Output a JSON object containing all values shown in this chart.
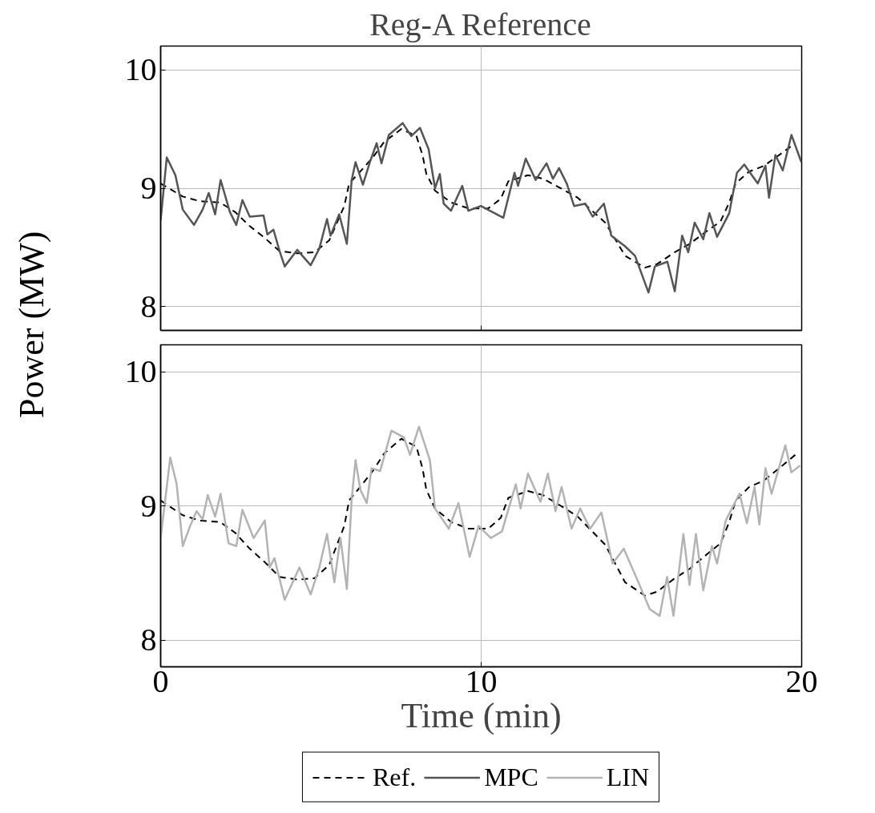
{
  "chart_data": [
    {
      "type": "line",
      "title": "Reg-A Reference",
      "ylabel": "Power (MW)",
      "xlim": [
        0,
        20
      ],
      "xticks": [
        0,
        10,
        20
      ],
      "ylim": [
        7.8,
        10.2
      ],
      "yticks": [
        8,
        9,
        10
      ],
      "grid": true,
      "tick_labels": "y",
      "legend": "bottom",
      "series": [
        {
          "name": "Ref.",
          "color": "#000000",
          "line_style": "dashed",
          "x": [
            0,
            0.69,
            1.23,
            1.85,
            2.32,
            2.78,
            3.25,
            3.71,
            4.26,
            4.8,
            5.26,
            5.73,
            5.88,
            6.19,
            6.62,
            6.97,
            7.51,
            7.98,
            8.17,
            8.29,
            8.56,
            9.06,
            9.6,
            10.22,
            10.61,
            10.85,
            11.46,
            11.93,
            12.55,
            13.01,
            13.87,
            14.49,
            15.11,
            15.49,
            16.04,
            16.5,
            17.05,
            17.47,
            17.74,
            17.94,
            18.36,
            18.83,
            19.45,
            19.8
          ],
          "values": [
            9.04,
            8.93,
            8.89,
            8.88,
            8.8,
            8.68,
            8.58,
            8.47,
            8.45,
            8.46,
            8.56,
            8.85,
            9.04,
            9.13,
            9.26,
            9.39,
            9.5,
            9.44,
            9.28,
            9.12,
            8.98,
            8.88,
            8.83,
            8.83,
            8.91,
            9.06,
            9.11,
            9.08,
            8.99,
            8.92,
            8.71,
            8.43,
            8.33,
            8.36,
            8.46,
            8.53,
            8.64,
            8.72,
            8.88,
            9.04,
            9.14,
            9.19,
            9.31,
            9.38
          ]
        },
        {
          "name": "MPC",
          "color": "#555555",
          "line_style": "solid",
          "x": [
            0,
            0.19,
            0.46,
            0.69,
            1.04,
            1.31,
            1.5,
            1.7,
            1.87,
            2.16,
            2.36,
            2.55,
            2.78,
            3.21,
            3.33,
            3.52,
            3.71,
            3.87,
            4.26,
            4.68,
            4.95,
            5.19,
            5.3,
            5.57,
            5.81,
            5.96,
            6.08,
            6.31,
            6.54,
            6.74,
            6.89,
            7.12,
            7.55,
            7.82,
            8.09,
            8.36,
            8.56,
            8.71,
            8.83,
            9.06,
            9.41,
            9.6,
            9.99,
            10.69,
            11.04,
            11.15,
            11.39,
            11.7,
            12.04,
            12.24,
            12.43,
            12.67,
            12.9,
            13.25,
            13.48,
            13.83,
            14.06,
            14.49,
            14.8,
            15.22,
            15.42,
            15.81,
            16.04,
            16.27,
            16.46,
            16.66,
            16.93,
            17.12,
            17.36,
            17.74,
            17.98,
            18.21,
            18.63,
            18.87,
            18.98,
            19.18,
            19.41,
            19.68,
            19.99
          ],
          "values": [
            8.73,
            9.26,
            9.11,
            8.82,
            8.69,
            8.82,
            8.96,
            8.78,
            9.07,
            8.8,
            8.69,
            8.9,
            8.76,
            8.77,
            8.61,
            8.65,
            8.47,
            8.34,
            8.48,
            8.35,
            8.49,
            8.74,
            8.6,
            8.78,
            8.53,
            9.07,
            9.22,
            9.03,
            9.23,
            9.38,
            9.21,
            9.45,
            9.55,
            9.44,
            9.51,
            9.33,
            9.0,
            9.12,
            8.87,
            8.81,
            9.02,
            8.81,
            8.85,
            8.75,
            9.13,
            9.02,
            9.25,
            9.07,
            9.21,
            9.08,
            9.17,
            9.04,
            8.85,
            8.87,
            8.76,
            8.87,
            8.6,
            8.51,
            8.43,
            8.12,
            8.34,
            8.38,
            8.13,
            8.6,
            8.46,
            8.71,
            8.57,
            8.79,
            8.59,
            8.79,
            9.13,
            9.2,
            9.04,
            9.19,
            8.92,
            9.28,
            9.15,
            9.45,
            9.22
          ]
        }
      ]
    },
    {
      "type": "line",
      "xlabel": "Time (min)",
      "xlim": [
        0,
        20
      ],
      "xticks": [
        0,
        10,
        20
      ],
      "ylim": [
        7.8,
        10.2
      ],
      "yticks": [
        8,
        9,
        10
      ],
      "grid": true,
      "legend": "bottom",
      "series": [
        {
          "color": "#000000",
          "line_style": "dashed",
          "x": [
            0,
            0.69,
            1.23,
            1.85,
            2.32,
            2.78,
            3.25,
            3.71,
            4.26,
            4.8,
            5.26,
            5.73,
            5.88,
            6.19,
            6.62,
            6.97,
            7.51,
            7.98,
            8.17,
            8.29,
            8.56,
            9.06,
            9.6,
            10.22,
            10.61,
            10.85,
            11.46,
            11.93,
            12.55,
            13.01,
            13.87,
            14.49,
            15.11,
            15.49,
            16.04,
            16.5,
            17.05,
            17.47,
            17.74,
            17.94,
            18.36,
            18.83,
            19.45,
            19.8
          ],
          "values": [
            9.04,
            8.93,
            8.89,
            8.88,
            8.8,
            8.68,
            8.58,
            8.47,
            8.45,
            8.46,
            8.56,
            8.85,
            9.04,
            9.13,
            9.26,
            9.39,
            9.5,
            9.44,
            9.28,
            9.12,
            8.98,
            8.88,
            8.83,
            8.83,
            8.91,
            9.06,
            9.11,
            9.08,
            8.99,
            8.92,
            8.71,
            8.43,
            8.33,
            8.36,
            8.46,
            8.53,
            8.64,
            8.72,
            8.88,
            9.04,
            9.14,
            9.19,
            9.31,
            9.38
          ]
        },
        {
          "name": "LIN",
          "color": "#b3b3b3",
          "line_style": "solid",
          "x": [
            0,
            0.3,
            0.5,
            0.69,
            0.92,
            1.12,
            1.31,
            1.47,
            1.7,
            1.87,
            2.12,
            2.36,
            2.55,
            2.9,
            3.25,
            3.4,
            3.55,
            3.87,
            4.33,
            4.68,
            4.95,
            5.19,
            5.42,
            5.61,
            5.81,
            5.96,
            6.08,
            6.23,
            6.43,
            6.58,
            6.85,
            7.2,
            7.59,
            7.78,
            8.06,
            8.4,
            8.56,
            8.99,
            9.29,
            9.64,
            9.92,
            10.3,
            10.65,
            11.08,
            11.23,
            11.46,
            11.85,
            12.08,
            12.32,
            12.51,
            12.82,
            13.09,
            13.4,
            13.75,
            14.1,
            14.45,
            14.87,
            15.26,
            15.57,
            15.8,
            16.0,
            16.31,
            16.5,
            16.7,
            16.93,
            17.2,
            17.36,
            17.63,
            18.06,
            18.29,
            18.53,
            18.68,
            18.87,
            19.06,
            19.49,
            19.68,
            19.95
          ],
          "values": [
            8.76,
            9.36,
            9.16,
            8.7,
            8.85,
            8.96,
            8.9,
            9.08,
            8.92,
            9.09,
            8.72,
            8.7,
            8.97,
            8.76,
            8.89,
            8.54,
            8.61,
            8.3,
            8.54,
            8.34,
            8.54,
            8.79,
            8.43,
            8.76,
            8.38,
            9.05,
            9.34,
            9.12,
            9.02,
            9.28,
            9.26,
            9.56,
            9.51,
            9.38,
            9.59,
            9.34,
            8.98,
            8.83,
            9.02,
            8.62,
            8.85,
            8.76,
            8.81,
            9.16,
            8.98,
            9.24,
            9.03,
            9.24,
            8.96,
            9.14,
            8.83,
            8.98,
            8.83,
            8.95,
            8.57,
            8.68,
            8.45,
            8.23,
            8.18,
            8.47,
            8.18,
            8.79,
            8.41,
            8.79,
            8.37,
            8.7,
            8.57,
            8.89,
            9.09,
            8.87,
            9.14,
            8.86,
            9.28,
            9.09,
            9.45,
            9.25,
            9.3
          ]
        }
      ]
    }
  ]
}
